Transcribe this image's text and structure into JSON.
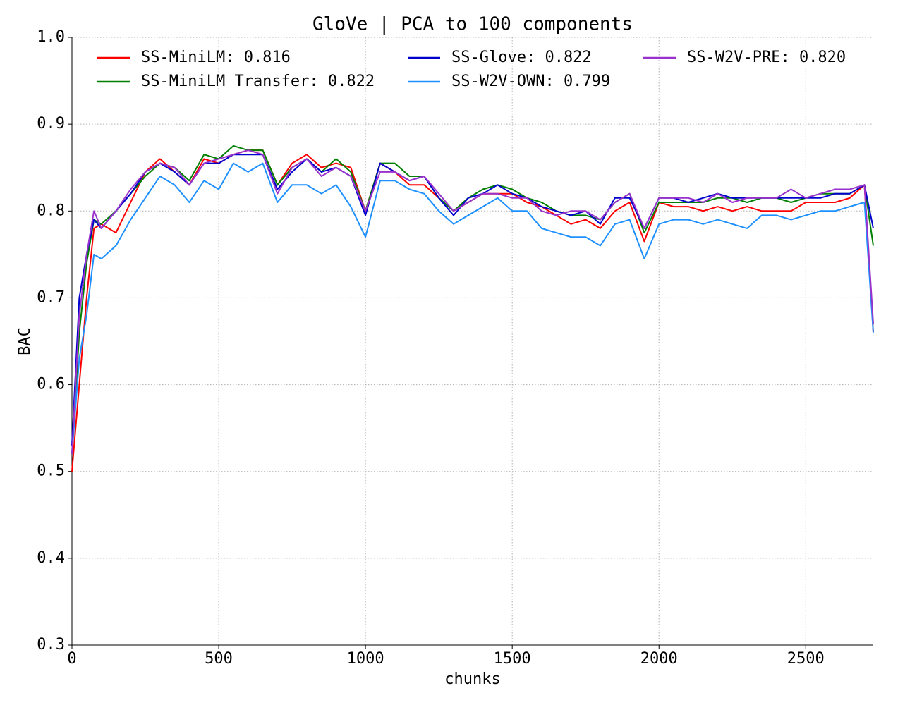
{
  "chart_data": {
    "type": "line",
    "title": "GloVe | PCA to 100 components",
    "xlabel": "chunks",
    "ylabel": "BAC",
    "x": [
      0,
      25,
      50,
      75,
      100,
      150,
      200,
      250,
      300,
      350,
      400,
      450,
      500,
      550,
      600,
      650,
      700,
      750,
      800,
      850,
      900,
      950,
      1000,
      1050,
      1100,
      1150,
      1200,
      1250,
      1300,
      1350,
      1400,
      1450,
      1500,
      1550,
      1600,
      1650,
      1700,
      1750,
      1800,
      1850,
      1900,
      1950,
      2000,
      2050,
      2100,
      2150,
      2200,
      2250,
      2300,
      2350,
      2400,
      2450,
      2500,
      2550,
      2600,
      2650,
      2700,
      2730
    ],
    "series": [
      {
        "name": "SS-MiniLM: 0.816",
        "color": "#ff0000",
        "values": [
          0.5,
          0.6,
          0.7,
          0.78,
          0.785,
          0.775,
          0.81,
          0.845,
          0.86,
          0.845,
          0.83,
          0.86,
          0.855,
          0.865,
          0.87,
          0.87,
          0.83,
          0.855,
          0.865,
          0.85,
          0.855,
          0.85,
          0.8,
          0.855,
          0.845,
          0.83,
          0.83,
          0.815,
          0.8,
          0.81,
          0.82,
          0.82,
          0.82,
          0.81,
          0.805,
          0.795,
          0.785,
          0.79,
          0.78,
          0.8,
          0.81,
          0.765,
          0.81,
          0.805,
          0.805,
          0.8,
          0.805,
          0.8,
          0.805,
          0.8,
          0.8,
          0.8,
          0.81,
          0.81,
          0.81,
          0.815,
          0.83,
          0.66
        ]
      },
      {
        "name": "SS-MiniLM Transfer: 0.822",
        "color": "#008000",
        "values": [
          0.52,
          0.66,
          0.74,
          0.79,
          0.785,
          0.8,
          0.82,
          0.84,
          0.855,
          0.85,
          0.835,
          0.865,
          0.86,
          0.875,
          0.87,
          0.87,
          0.83,
          0.85,
          0.86,
          0.845,
          0.86,
          0.845,
          0.8,
          0.855,
          0.855,
          0.84,
          0.84,
          0.815,
          0.8,
          0.815,
          0.825,
          0.83,
          0.825,
          0.815,
          0.81,
          0.8,
          0.795,
          0.795,
          0.79,
          0.81,
          0.82,
          0.775,
          0.81,
          0.81,
          0.81,
          0.81,
          0.815,
          0.815,
          0.81,
          0.815,
          0.815,
          0.81,
          0.815,
          0.82,
          0.82,
          0.82,
          0.83,
          0.76
        ]
      },
      {
        "name": "SS-Glove: 0.822",
        "color": "#0000cd",
        "values": [
          0.53,
          0.7,
          0.75,
          0.79,
          0.78,
          0.8,
          0.82,
          0.845,
          0.855,
          0.845,
          0.83,
          0.855,
          0.855,
          0.865,
          0.865,
          0.865,
          0.825,
          0.845,
          0.86,
          0.845,
          0.85,
          0.84,
          0.795,
          0.855,
          0.845,
          0.835,
          0.84,
          0.815,
          0.795,
          0.815,
          0.82,
          0.83,
          0.82,
          0.815,
          0.805,
          0.8,
          0.795,
          0.8,
          0.785,
          0.815,
          0.815,
          0.78,
          0.815,
          0.815,
          0.81,
          0.815,
          0.82,
          0.815,
          0.815,
          0.815,
          0.815,
          0.815,
          0.815,
          0.815,
          0.82,
          0.82,
          0.83,
          0.78
        ]
      },
      {
        "name": "SS-W2V-OWN: 0.799",
        "color": "#1e90ff",
        "values": [
          0.52,
          0.63,
          0.68,
          0.75,
          0.745,
          0.76,
          0.79,
          0.815,
          0.84,
          0.83,
          0.81,
          0.835,
          0.825,
          0.855,
          0.845,
          0.855,
          0.81,
          0.83,
          0.83,
          0.82,
          0.83,
          0.805,
          0.77,
          0.835,
          0.835,
          0.825,
          0.82,
          0.8,
          0.785,
          0.795,
          0.805,
          0.815,
          0.8,
          0.8,
          0.78,
          0.775,
          0.77,
          0.77,
          0.76,
          0.785,
          0.79,
          0.745,
          0.785,
          0.79,
          0.79,
          0.785,
          0.79,
          0.785,
          0.78,
          0.795,
          0.795,
          0.79,
          0.795,
          0.8,
          0.8,
          0.805,
          0.81,
          0.66
        ]
      },
      {
        "name": "SS-W2V-PRE: 0.820",
        "color": "#9932cc",
        "values": [
          0.52,
          0.68,
          0.75,
          0.8,
          0.78,
          0.8,
          0.825,
          0.845,
          0.855,
          0.85,
          0.83,
          0.855,
          0.86,
          0.865,
          0.87,
          0.865,
          0.82,
          0.85,
          0.86,
          0.84,
          0.85,
          0.84,
          0.8,
          0.845,
          0.845,
          0.835,
          0.84,
          0.82,
          0.8,
          0.81,
          0.82,
          0.82,
          0.815,
          0.815,
          0.8,
          0.795,
          0.8,
          0.8,
          0.79,
          0.81,
          0.82,
          0.78,
          0.815,
          0.815,
          0.815,
          0.81,
          0.82,
          0.81,
          0.815,
          0.815,
          0.815,
          0.825,
          0.815,
          0.82,
          0.825,
          0.825,
          0.83,
          0.67
        ]
      }
    ],
    "xlim": [
      0,
      2730
    ],
    "ylim": [
      0.3,
      1.0
    ],
    "xticks": [
      0,
      500,
      1000,
      1500,
      2000,
      2500
    ],
    "yticks": [
      0.3,
      0.4,
      0.5,
      0.6,
      0.7,
      0.8,
      0.9,
      {
        "value": 1,
        "label": "1.0"
      }
    ],
    "grid": true,
    "legend": "upper center"
  }
}
